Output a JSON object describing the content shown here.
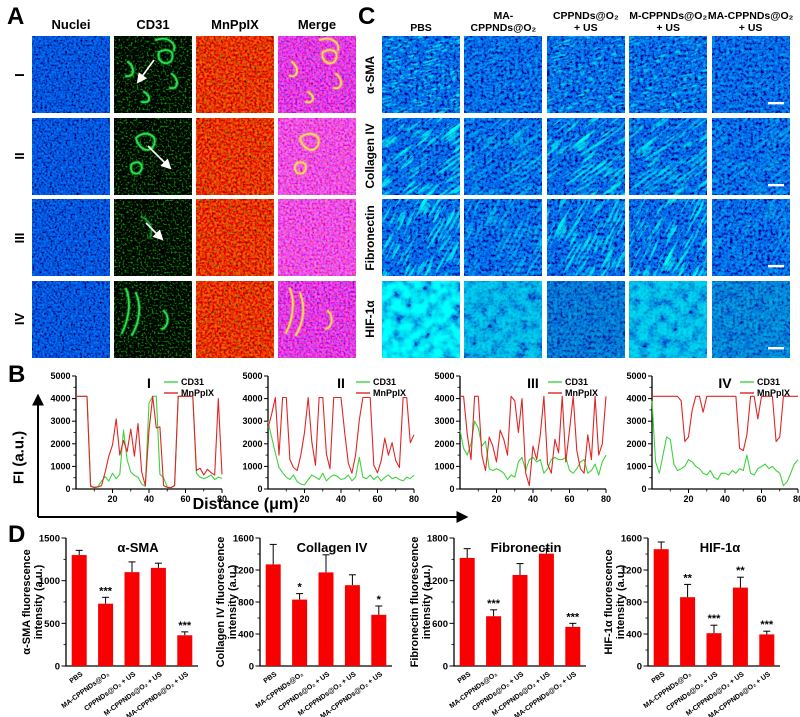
{
  "colors": {
    "bar_red": "#f80000",
    "line_green": "#3fd23f",
    "line_red": "#e02525",
    "nuclei_blue": "#2233cc",
    "cd31_green": "#2be04e",
    "mnppix_red": "#e32222",
    "merge_vessel_yellow": "#ffdf4d",
    "tissue_green": "#2ee05a",
    "hif_cyan": "#39e0b8",
    "arrow_white": "#ffffff"
  },
  "panel_a": {
    "label": "A",
    "col_headers": [
      "Nuclei",
      "CD31",
      "MnPpIX",
      "Merge"
    ],
    "row_labels": [
      "I",
      "II",
      "III",
      "IV"
    ],
    "arrow_rows": [
      "I",
      "II",
      "III"
    ]
  },
  "panel_b": {
    "label": "B",
    "ylabel": "FI (a.u.)",
    "xlabel": "Distance (μm)"
  },
  "panel_c": {
    "label": "C",
    "col_headers": [
      "PBS",
      "MA-\nCPPNDs@O₂",
      "CPPNDs@O₂\n+ US",
      "M-CPPNDs@O₂\n+ US",
      "MA-CPPNDs@O₂\n+ US"
    ],
    "row_labels": [
      "α-SMA",
      "Collagen IV",
      "Fibronectin",
      "HIF-1α"
    ],
    "has_scale_bars": true
  },
  "panel_d": {
    "label": "D"
  },
  "chart_data": [
    {
      "type": "line",
      "panel": "B",
      "title": "I",
      "xlabel": "Distance (μm)",
      "ylabel": "FI (a.u.)",
      "xlim": [
        0,
        80
      ],
      "ylim": [
        0,
        5000
      ],
      "xticks": [
        20,
        40,
        60,
        80
      ],
      "yticks": [
        0,
        1000,
        2000,
        3000,
        4000,
        5000
      ],
      "legend": [
        "CD31",
        "MnPpIX"
      ],
      "x_step": 2,
      "series": [
        {
          "name": "CD31",
          "color": "#3fd23f",
          "values": [
            4100,
            4100,
            4100,
            4100,
            150,
            80,
            100,
            350,
            550,
            350,
            700,
            450,
            650,
            2600,
            1300,
            750,
            600,
            520,
            220,
            120,
            3800,
            4100,
            4100,
            650,
            500,
            80,
            60,
            150,
            4100,
            4100,
            4100,
            4100,
            4100,
            700,
            520,
            460,
            520,
            620,
            420,
            520,
            470
          ]
        },
        {
          "name": "MnPpIX",
          "color": "#e02525",
          "values": [
            4100,
            4100,
            4100,
            4100,
            120,
            60,
            90,
            150,
            750,
            1450,
            1950,
            3100,
            1500,
            2150,
            1650,
            2650,
            1450,
            2900,
            750,
            150,
            2600,
            4100,
            2700,
            2750,
            150,
            70,
            60,
            150,
            4100,
            4100,
            4100,
            4100,
            4100,
            820,
            920,
            620,
            870,
            720,
            620,
            4000,
            640
          ]
        }
      ]
    },
    {
      "type": "line",
      "panel": "B",
      "title": "II",
      "xlabel": "Distance (μm)",
      "ylabel": "FI (a.u.)",
      "xlim": [
        0,
        80
      ],
      "ylim": [
        0,
        5000
      ],
      "xticks": [
        20,
        40,
        60,
        80
      ],
      "yticks": [
        0,
        1000,
        2000,
        3000,
        4000,
        5000
      ],
      "legend": [
        "CD31",
        "MnPpIX"
      ],
      "x_step": 2,
      "series": [
        {
          "name": "CD31",
          "color": "#3fd23f",
          "values": [
            3000,
            2300,
            1600,
            950,
            720,
            520,
            420,
            620,
            320,
            220,
            180,
            420,
            620,
            520,
            420,
            700,
            360,
            520,
            620,
            560,
            420,
            460,
            620,
            360,
            520,
            1400,
            520,
            460,
            620,
            420,
            560,
            360,
            520,
            620,
            460,
            520,
            420,
            360,
            520,
            460,
            620
          ]
        },
        {
          "name": "MnPpIX",
          "color": "#e02525",
          "values": [
            2700,
            3300,
            4050,
            1500,
            4050,
            4050,
            1300,
            950,
            820,
            1500,
            2500,
            4050,
            2100,
            1050,
            4050,
            4050,
            1550,
            900,
            4050,
            4050,
            4050,
            2500,
            1150,
            700,
            1500,
            3050,
            4050,
            4050,
            4050,
            1050,
            720,
            1250,
            2250,
            1500,
            2050,
            1250,
            950,
            4050,
            4050,
            2050,
            2400
          ]
        }
      ]
    },
    {
      "type": "line",
      "panel": "B",
      "title": "III",
      "xlabel": "Distance (μm)",
      "ylabel": "FI (a.u.)",
      "xlim": [
        0,
        80
      ],
      "ylim": [
        0,
        5000
      ],
      "xticks": [
        20,
        40,
        60,
        80
      ],
      "yticks": [
        0,
        1000,
        2000,
        3000,
        4000,
        5000
      ],
      "legend": [
        "CD31",
        "MnPpIX"
      ],
      "x_step": 2,
      "series": [
        {
          "name": "CD31",
          "color": "#3fd23f",
          "values": [
            2600,
            1800,
            1500,
            2000,
            3000,
            2700,
            1900,
            2100,
            900,
            820,
            900,
            820,
            700,
            420,
            620,
            520,
            1200,
            1400,
            820,
            1300,
            1400,
            1200,
            1300,
            700,
            900,
            1300,
            1400,
            1300,
            1300,
            1400,
            820,
            700,
            900,
            1200,
            1300,
            700,
            820,
            1100,
            620,
            1200,
            1500
          ]
        },
        {
          "name": "MnPpIX",
          "color": "#e02525",
          "values": [
            4100,
            4100,
            2400,
            1300,
            4100,
            4100,
            1500,
            820,
            2300,
            1900,
            1200,
            2600,
            2200,
            1500,
            4100,
            3900,
            2500,
            4000,
            700,
            150,
            1900,
            1300,
            2400,
            4100,
            1100,
            700,
            2200,
            1600,
            4100,
            1200,
            2600,
            4100,
            1700,
            900,
            700,
            2400,
            1300,
            4100,
            1500,
            2000,
            4100
          ]
        }
      ]
    },
    {
      "type": "line",
      "panel": "B",
      "title": "IV",
      "xlabel": "Distance (μm)",
      "ylabel": "FI (a.u.)",
      "xlim": [
        0,
        80
      ],
      "ylim": [
        0,
        5000
      ],
      "xticks": [
        20,
        40,
        60,
        80
      ],
      "yticks": [
        0,
        1000,
        2000,
        3000,
        4000,
        5000
      ],
      "legend": [
        "CD31",
        "MnPpIX"
      ],
      "x_step": 2,
      "series": [
        {
          "name": "CD31",
          "color": "#3fd23f",
          "values": [
            3900,
            1200,
            700,
            1500,
            2300,
            2200,
            1100,
            820,
            900,
            1000,
            1300,
            1200,
            1000,
            900,
            700,
            620,
            820,
            520,
            420,
            700,
            700,
            620,
            820,
            700,
            900,
            820,
            1500,
            700,
            620,
            900,
            1000,
            1100,
            900,
            1000,
            820,
            700,
            150,
            320,
            700,
            1100,
            1300
          ]
        },
        {
          "name": "MnPpIX",
          "color": "#e02525",
          "values": [
            4100,
            4100,
            4100,
            4100,
            4100,
            4100,
            4100,
            4100,
            3900,
            2100,
            2300,
            3500,
            4100,
            4100,
            3400,
            4100,
            4100,
            4100,
            4100,
            4100,
            4100,
            4100,
            4100,
            4100,
            1800,
            1700,
            2400,
            4100,
            4100,
            3100,
            4100,
            4100,
            4100,
            4100,
            2100,
            2300,
            4100,
            4100,
            4100,
            4100,
            4100
          ]
        }
      ]
    },
    {
      "type": "bar",
      "panel": "D",
      "title": "α-SMA",
      "ylabel": "α-SMA fluorescence\nintensity (a.u.)",
      "categories": [
        "PBS",
        "MA-CPPNDs@O₂",
        "CPPNDs@O₂ + US",
        "M-CPPNDs@O₂ + US",
        "MA-CPPNDs@O₂ + US"
      ],
      "values": [
        1300,
        730,
        1100,
        1150,
        360
      ],
      "errors": [
        55,
        75,
        120,
        55,
        40
      ],
      "significance": [
        "",
        "***",
        "",
        "",
        "***"
      ],
      "ylim": [
        0,
        1500
      ],
      "yticks": [
        0,
        500,
        1000,
        1500
      ],
      "bar_color": "#f80000"
    },
    {
      "type": "bar",
      "panel": "D",
      "title": "Collagen IV",
      "ylabel": "Collagen IV fluorescence\nintensity (a.u.)",
      "categories": [
        "PBS",
        "MA-CPPNDs@O₂",
        "CPPNDs@O₂ + US",
        "M-CPPNDs@O₂ + US",
        "MA-CPPNDs@O₂ + US"
      ],
      "values": [
        1270,
        830,
        1170,
        1010,
        640
      ],
      "errors": [
        250,
        75,
        220,
        130,
        110
      ],
      "significance": [
        "",
        "*",
        "",
        "",
        "*"
      ],
      "ylim": [
        0,
        1600
      ],
      "yticks": [
        0,
        400,
        800,
        1200,
        1600
      ],
      "bar_color": "#f80000"
    },
    {
      "type": "bar",
      "panel": "D",
      "title": "Fibronectin",
      "ylabel": "Fibronectin fluorescence\nintensity (a.u.)",
      "categories": [
        "PBS",
        "MA-CPPNDs@O₂",
        "CPPNDs@O₂ + US",
        "M-CPPNDs@O₂ + US",
        "MA-CPPNDs@O₂ + US"
      ],
      "values": [
        1520,
        700,
        1280,
        1580,
        550
      ],
      "errors": [
        130,
        90,
        160,
        70,
        50
      ],
      "significance": [
        "",
        "***",
        "",
        "",
        "***"
      ],
      "ylim": [
        0,
        1800
      ],
      "yticks": [
        0,
        600,
        1200,
        1800
      ],
      "bar_color": "#f80000"
    },
    {
      "type": "bar",
      "panel": "D",
      "title": "HIF-1α",
      "ylabel": "HIF-1α fluorescence\nintensity (a.u.)",
      "categories": [
        "PBS",
        "MA-CPPNDs@O₂",
        "CPPNDs@O₂ + US",
        "M-CPPNDs@O₂ + US",
        "MA-CPPNDs@O₂ + US"
      ],
      "values": [
        1460,
        860,
        410,
        980,
        395
      ],
      "errors": [
        90,
        160,
        100,
        130,
        40
      ],
      "significance": [
        "",
        "**",
        "***",
        "**",
        "***"
      ],
      "ylim": [
        0,
        1600
      ],
      "yticks": [
        0,
        400,
        800,
        1200,
        1600
      ],
      "bar_color": "#f80000"
    }
  ]
}
